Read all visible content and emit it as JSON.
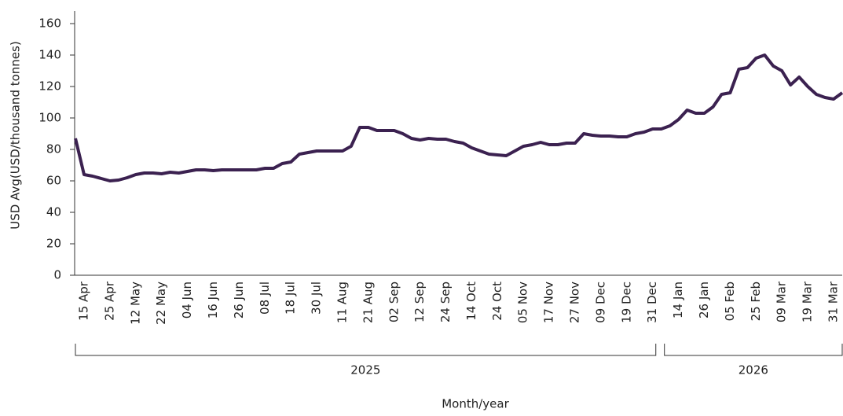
{
  "chart_data": {
    "type": "line",
    "y_label": "USD Avg(USD/thousand tonnes)",
    "x_label": "Month/year",
    "categories": [
      null,
      "15 Apr",
      null,
      null,
      "25 Apr",
      null,
      null,
      "12 May",
      null,
      null,
      "22 May",
      null,
      null,
      "04 Jun",
      null,
      null,
      "16 Jun",
      null,
      null,
      "26 Jun",
      null,
      null,
      "08 Jul",
      null,
      null,
      "18 Jul",
      null,
      null,
      "30 Jul",
      null,
      null,
      "11 Aug",
      null,
      null,
      "21 Aug",
      null,
      null,
      "02 Sep",
      null,
      null,
      "12 Sep",
      null,
      null,
      "24 Sep",
      null,
      null,
      "14 Oct",
      null,
      null,
      "24 Oct",
      null,
      null,
      "05 Nov",
      null,
      null,
      "17 Nov",
      null,
      null,
      "27 Nov",
      null,
      null,
      "09 Dec",
      null,
      null,
      "19 Dec",
      null,
      null,
      "31 Dec",
      null,
      null,
      "14 Jan",
      null,
      null,
      "26 Jan",
      null,
      null,
      "05 Feb",
      null,
      null,
      "25 Feb",
      null,
      null,
      "09 Mar",
      null,
      null,
      "19 Mar",
      null,
      null,
      "31 Mar",
      null
    ],
    "x_groups": [
      {
        "label": "2025",
        "count": 68
      },
      {
        "label": "2026",
        "count": 22
      }
    ],
    "series": [
      {
        "name": "USD Avg",
        "color": "#3b2150",
        "values": [
          87,
          64,
          63,
          61.5,
          60,
          60.5,
          62,
          64,
          65,
          65,
          64.5,
          65.5,
          65,
          66,
          67,
          67,
          66.5,
          67,
          67,
          67,
          67,
          67,
          68,
          68,
          71,
          72,
          77,
          78,
          79,
          79,
          79,
          79,
          82,
          94,
          94,
          92,
          92,
          92,
          90,
          87,
          86,
          87,
          86.5,
          86.5,
          85,
          84,
          81,
          79,
          77,
          76.5,
          76,
          79,
          82,
          83,
          84.5,
          83,
          83,
          84,
          84,
          90,
          89,
          88.5,
          88.5,
          88,
          88,
          90,
          91,
          93,
          93,
          95,
          99,
          105,
          103,
          103,
          107,
          115,
          116,
          131,
          132,
          138,
          140,
          133,
          130,
          121,
          126,
          120,
          115,
          113,
          112,
          116
        ]
      }
    ],
    "ylim": [
      0,
      165
    ],
    "yticks": [
      0,
      20,
      40,
      60,
      80,
      100,
      120,
      140,
      160
    ]
  }
}
